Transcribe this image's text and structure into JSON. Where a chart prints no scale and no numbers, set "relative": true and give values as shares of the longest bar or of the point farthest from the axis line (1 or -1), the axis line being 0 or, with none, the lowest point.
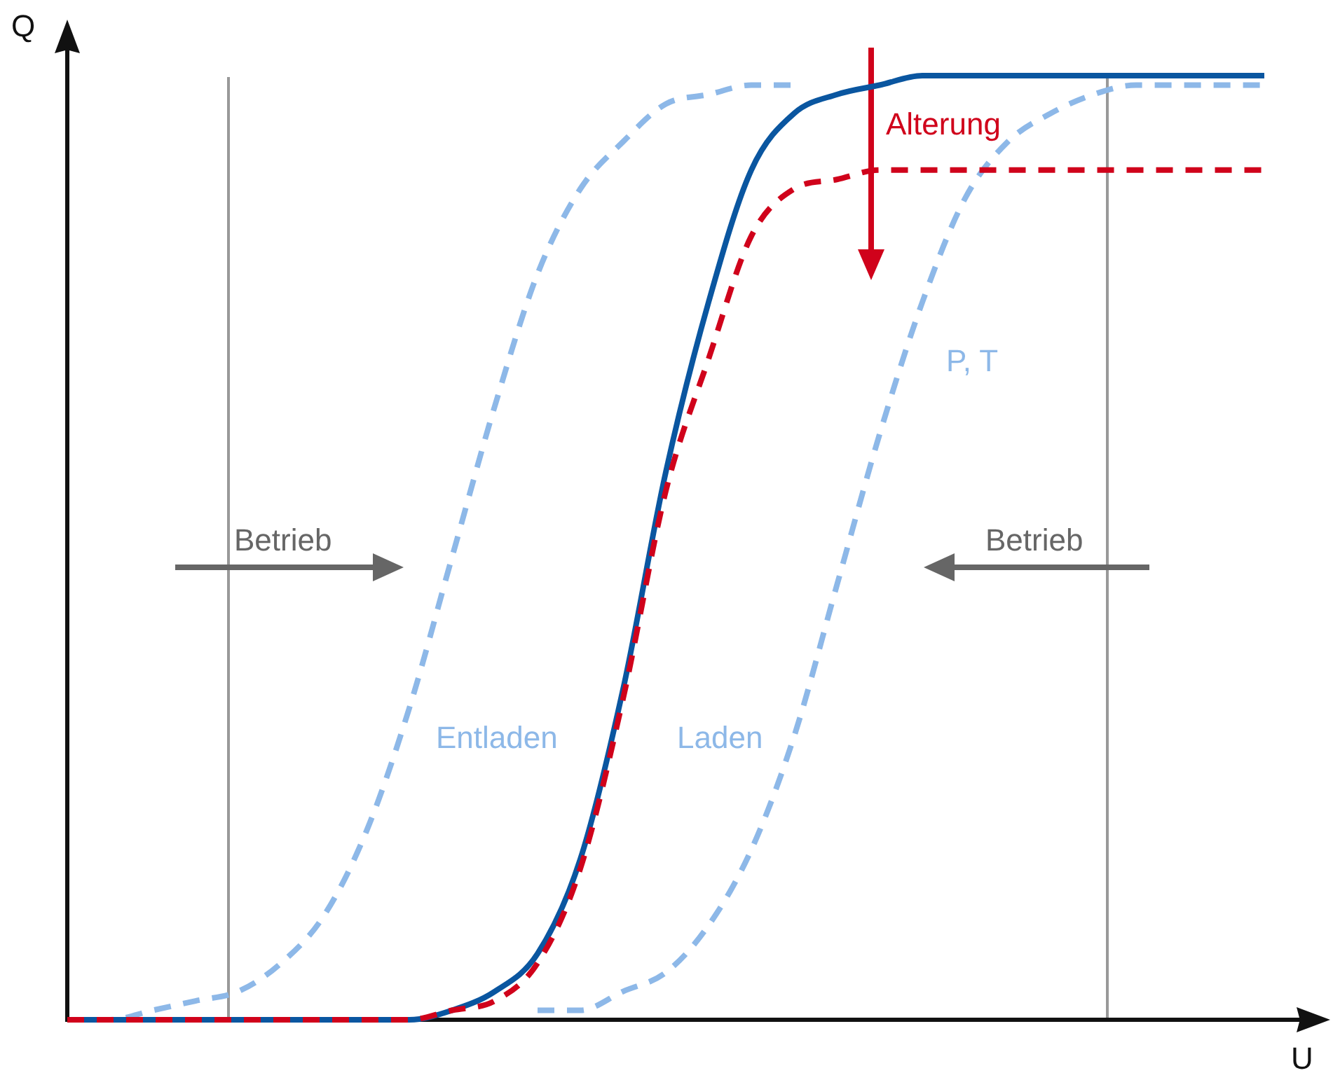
{
  "chart_data": {
    "type": "line",
    "relative": true,
    "xlabel": "U",
    "ylabel": "Q",
    "legend": false,
    "marker": "none",
    "categories": [
      null,
      null,
      null,
      null,
      null,
      null,
      null,
      null,
      null,
      null,
      null,
      null,
      null,
      null,
      null,
      null,
      null,
      null,
      null,
      null,
      null,
      null,
      null,
      null,
      null,
      null,
      null,
      null,
      null
    ],
    "annotations": [
      "Alterung",
      "P, T",
      "Betrieb",
      "Betrieb",
      "Entladen",
      "Laden"
    ],
    "series": [
      {
        "color": "#8db8e8",
        "line_style": "dashed",
        "values": [
          0,
          0,
          0.01,
          0.02,
          0.03,
          0.06,
          0.11,
          0.2,
          0.33,
          0.49,
          0.65,
          0.79,
          0.88,
          0.93,
          0.97,
          0.98,
          0.99,
          0.99,
          null,
          null,
          null,
          null,
          null,
          null,
          null,
          null,
          null,
          null,
          null
        ]
      },
      {
        "color": "#8db8e8",
        "line_style": "dashed",
        "values": [
          null,
          null,
          null,
          null,
          null,
          null,
          null,
          null,
          null,
          null,
          null,
          0.01,
          0.01,
          0.03,
          0.05,
          0.1,
          0.18,
          0.3,
          0.46,
          0.62,
          0.76,
          0.87,
          0.93,
          0.96,
          0.98,
          0.99,
          0.99,
          0.99,
          0.99
        ]
      },
      {
        "color": "#0a56a0",
        "line_style": "solid",
        "values": [
          0,
          0,
          0,
          0,
          0,
          0,
          0,
          0,
          0,
          0.01,
          0.03,
          0.07,
          0.17,
          0.35,
          0.58,
          0.76,
          0.9,
          0.96,
          0.98,
          0.99,
          1,
          1,
          1,
          1,
          1,
          1,
          1,
          1,
          1
        ]
      },
      {
        "color": "#d0021b",
        "line_style": "dashed",
        "values": [
          0,
          0,
          0,
          0,
          0,
          0,
          0,
          0,
          0,
          0.01,
          0.02,
          0.06,
          0.16,
          0.34,
          0.56,
          0.7,
          0.83,
          0.88,
          0.89,
          0.9,
          0.9,
          0.9,
          0.9,
          0.9,
          0.9,
          0.9,
          0.9,
          0.9,
          0.9
        ]
      }
    ]
  }
}
